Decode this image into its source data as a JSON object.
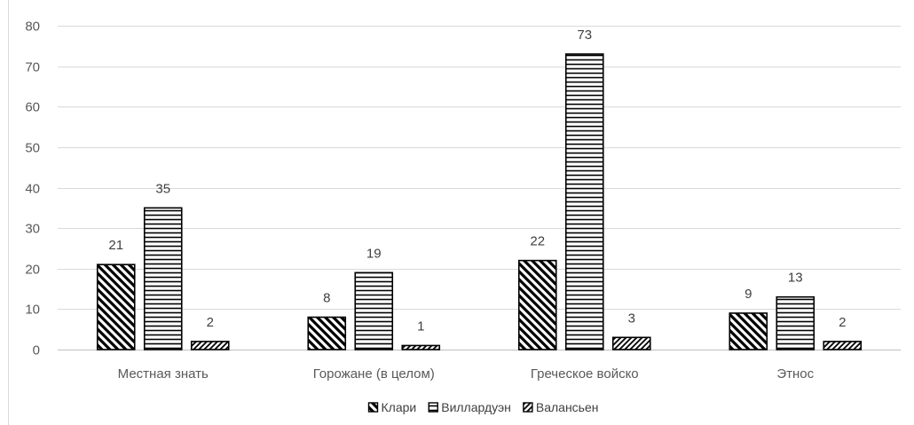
{
  "chart_data": {
    "type": "bar",
    "title": "",
    "xlabel": "",
    "ylabel": "",
    "categories": [
      "Местная знать",
      "Горожане (в целом)",
      "Греческое войско",
      "Этнос"
    ],
    "series": [
      {
        "name": "Клари",
        "values": [
          21,
          8,
          22,
          9
        ],
        "pattern": "diagonal-down"
      },
      {
        "name": "Виллардуэн",
        "values": [
          35,
          19,
          73,
          13
        ],
        "pattern": "horizontal"
      },
      {
        "name": "Валансьен",
        "values": [
          2,
          1,
          3,
          2
        ],
        "pattern": "diagonal-up"
      }
    ],
    "ylim": [
      0,
      80
    ],
    "yticks": [
      0,
      10,
      20,
      30,
      40,
      50,
      60,
      70,
      80
    ],
    "grid": true,
    "data_labels": true,
    "legend": "bottom",
    "colors": {
      "bar_stroke": "#000000",
      "bar_fill": "#ffffff",
      "grid": "#d9d9d9",
      "text": "#595959"
    }
  }
}
